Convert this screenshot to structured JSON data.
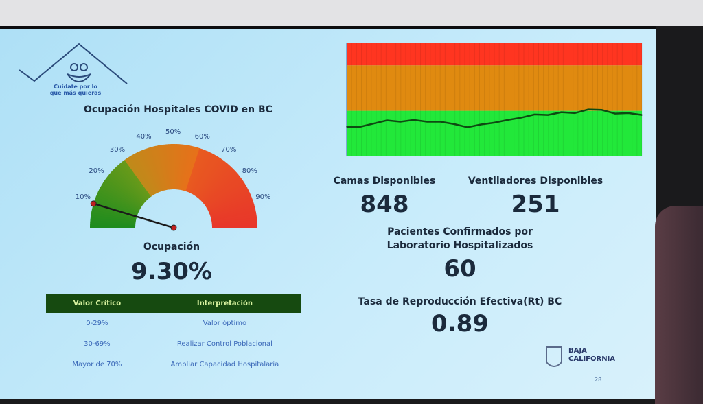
{
  "logo": {
    "text": "Cuídate por lo que más quieras"
  },
  "gauge": {
    "title": "Ocupación Hospitales COVID en BC",
    "ticks": [
      "10%",
      "20%",
      "30%",
      "40%",
      "50%",
      "60%",
      "70%",
      "80%",
      "90%"
    ],
    "label": "Ocupación",
    "value_text": "9.30%",
    "value": 9.3,
    "colors": [
      "#1e8c1e",
      "#e8901a",
      "#e8352a"
    ]
  },
  "table": {
    "headers": [
      "Valor Crítico",
      "Interpretación"
    ],
    "rows": [
      [
        "0-29%",
        "Valor óptimo"
      ],
      [
        "30-69%",
        "Realizar Control Poblacional"
      ],
      [
        "Mayor de 70%",
        "Ampliar Capacidad Hospitalaria"
      ]
    ]
  },
  "chart_data": {
    "type": "line",
    "title": "",
    "ylim": [
      0,
      2.5
    ],
    "bands": [
      {
        "from": 0,
        "to": 1,
        "color": "#22e83a"
      },
      {
        "from": 1,
        "to": 2,
        "color": "#e08a10"
      },
      {
        "from": 2,
        "to": 2.5,
        "color": "#ff3520"
      }
    ],
    "values": [
      0.65,
      0.65,
      0.72,
      0.79,
      0.76,
      0.8,
      0.76,
      0.76,
      0.71,
      0.64,
      0.7,
      0.74,
      0.8,
      0.85,
      0.92,
      0.91,
      0.97,
      0.95,
      1.03,
      1.02,
      0.94,
      0.95,
      0.91
    ],
    "line_color": "#0e4a12",
    "grid": true
  },
  "stats": {
    "camas_label": "Camas Disponibles",
    "camas": "848",
    "vent_label": "Ventiladores Disponibles",
    "vent": "251",
    "pac_label_1": "Pacientes Confirmados por",
    "pac_label_2": "Laboratorio Hospitalizados",
    "pac": "60",
    "rt_label": "Tasa de Reproducción Efectiva(Rt) BC",
    "rt": "0.89"
  },
  "brand": {
    "name_1": "BAJA",
    "name_2": "CALIFORNIA",
    "page": "28"
  }
}
